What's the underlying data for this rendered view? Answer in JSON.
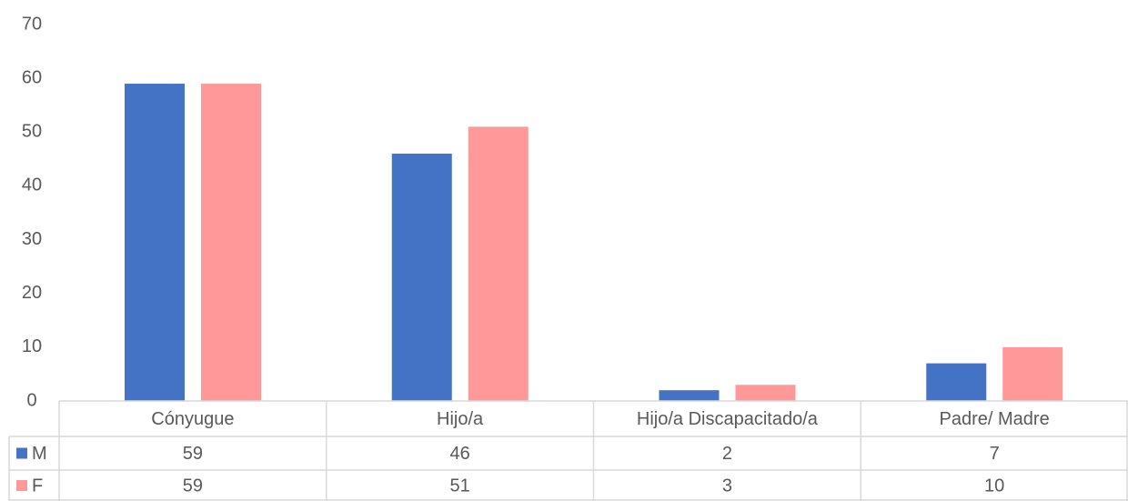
{
  "chart_data": {
    "type": "bar",
    "categories": [
      "Cónyugue",
      "Hijo/a",
      "Hijo/a Discapacitado/a",
      "Padre/ Madre"
    ],
    "series": [
      {
        "name": "M",
        "color": "#4472c4",
        "values": [
          59,
          46,
          2,
          7
        ]
      },
      {
        "name": "F",
        "color": "#ff9999",
        "values": [
          59,
          51,
          3,
          10
        ]
      }
    ],
    "ylim": [
      0,
      70
    ],
    "yticks": [
      0,
      10,
      20,
      30,
      40,
      50,
      60,
      70
    ],
    "grid": false,
    "data_table": true
  }
}
